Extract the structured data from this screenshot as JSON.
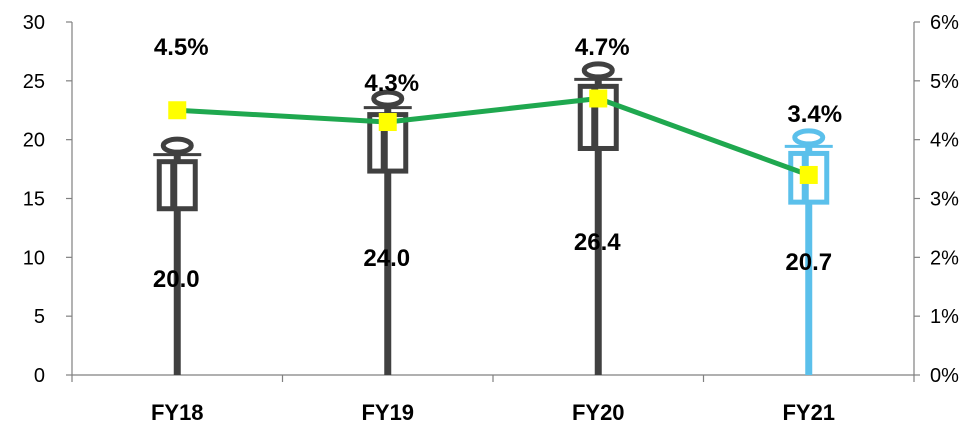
{
  "chart_data": {
    "type": "bar",
    "categories": [
      "FY18",
      "FY19",
      "FY20",
      "FY21"
    ],
    "series": [
      {
        "values": [
          20.0,
          24.0,
          26.4,
          20.7
        ],
        "value_labels": [
          "20.0",
          "24.0",
          "26.4",
          "20.7"
        ],
        "axis": "left",
        "style": "bottle-icon",
        "colors": [
          "#404040",
          "#404040",
          "#404040",
          "#5bc0eb"
        ]
      },
      {
        "type": "line",
        "values": [
          4.5,
          4.3,
          4.7,
          3.4
        ],
        "value_labels": [
          "4.5%",
          "4.3%",
          "4.7%",
          "3.4%"
        ],
        "axis": "right",
        "line_color": "#1fa84f",
        "marker": "square",
        "marker_color": "#ffff00"
      }
    ],
    "ylim": [
      0,
      30
    ],
    "yticks": [
      "0",
      "5",
      "10",
      "15",
      "20",
      "25",
      "30"
    ],
    "y2lim": [
      0,
      6
    ],
    "y2ticks": [
      "0%",
      "1%",
      "2%",
      "3%",
      "4%",
      "5%",
      "6%"
    ],
    "grid": false,
    "title": "",
    "xlabel": "",
    "ylabel": ""
  }
}
